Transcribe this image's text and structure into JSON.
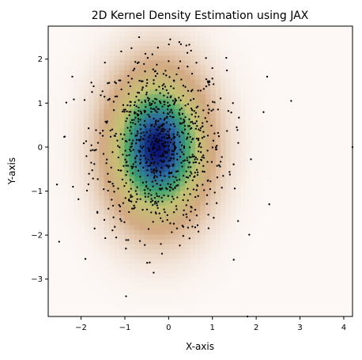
{
  "chart_data": {
    "type": "heatmap",
    "title": "2D Kernel Density Estimation using JAX",
    "xlabel": "X-axis",
    "ylabel": "Y-axis",
    "xlim": [
      -2.75,
      4.2
    ],
    "ylim": [
      -3.85,
      2.75
    ],
    "xticks": [
      -2,
      -1,
      0,
      1,
      2,
      3,
      4
    ],
    "xtick_labels": [
      "−2",
      "−1",
      "0",
      "1",
      "2",
      "3",
      "4"
    ],
    "yticks": [
      -3,
      -2,
      -1,
      0,
      1,
      2
    ],
    "ytick_labels": [
      "−3",
      "−2",
      "−1",
      "0",
      "1",
      "2"
    ],
    "colormap": "gist_earth_r",
    "colors": {
      "low": "#fdf8f6",
      "tan": "#d2a982",
      "yellow": "#c2c271",
      "green": "#3fa36b",
      "blue": "#2c6da0",
      "navy": "#0a1070"
    },
    "density_model": {
      "center": [
        -0.25,
        0.0
      ],
      "sigma_x": 0.7,
      "sigma_y": 1.05
    },
    "scatter": {
      "marker": "dot",
      "color": "#000000",
      "distribution": "approximately normal",
      "approx_count": 900,
      "x_mean": -0.2,
      "x_std": 0.75,
      "y_mean": 0.0,
      "y_std": 1.0,
      "outlier_points": [
        {
          "x": 4.2,
          "y": 0.0
        },
        {
          "x": 1.8,
          "y": -3.85
        },
        {
          "x": -2.55,
          "y": -0.85
        },
        {
          "x": -2.5,
          "y": -2.15
        },
        {
          "x": 2.8,
          "y": 1.05
        },
        {
          "x": 2.3,
          "y": -1.3
        },
        {
          "x": -2.2,
          "y": 1.6
        },
        {
          "x": 2.25,
          "y": 1.6
        }
      ]
    }
  }
}
